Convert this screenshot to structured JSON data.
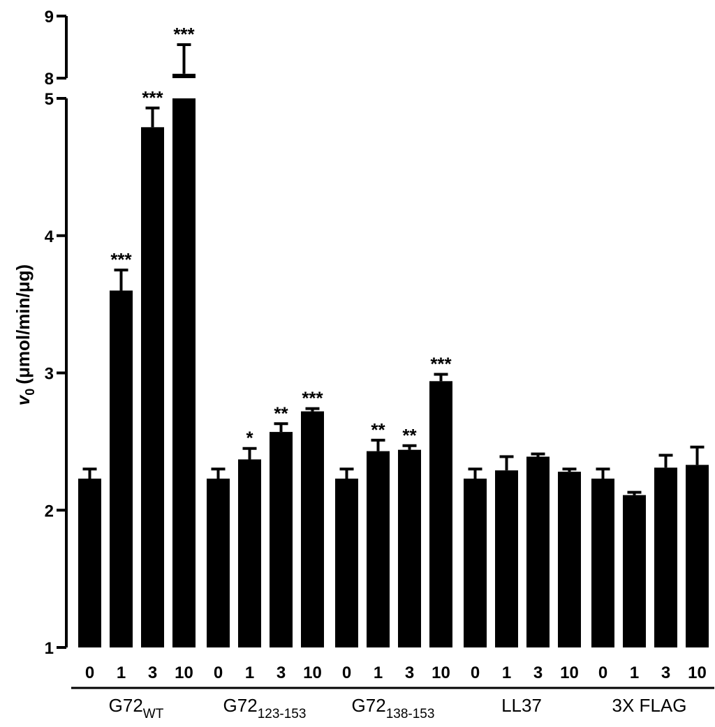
{
  "chart_data": {
    "type": "bar",
    "ylabel_var": "v",
    "ylabel_sub": "0",
    "ylabel_unit": "(μmol/min/μg)",
    "axis_break": {
      "lower": [
        1,
        5
      ],
      "upper": [
        8,
        9
      ]
    },
    "yticks": [
      1,
      2,
      3,
      4,
      5,
      8,
      9
    ],
    "colors": {
      "bar": "#000000"
    },
    "groups": [
      {
        "label": "G72",
        "label_sub": "WT",
        "categories": [
          "0",
          "1",
          "3",
          "10"
        ],
        "values": [
          2.23,
          3.6,
          4.79,
          8.07
        ],
        "errors": [
          0.07,
          0.15,
          0.14,
          0.47
        ],
        "significance": [
          "",
          "***",
          "***",
          "***"
        ]
      },
      {
        "label": "G72",
        "label_sub": "123-153",
        "categories": [
          "0",
          "1",
          "3",
          "10"
        ],
        "values": [
          2.23,
          2.37,
          2.57,
          2.72
        ],
        "errors": [
          0.07,
          0.08,
          0.06,
          0.02
        ],
        "significance": [
          "",
          "*",
          "**",
          "***"
        ]
      },
      {
        "label": "G72",
        "label_sub": "138-153",
        "categories": [
          "0",
          "1",
          "3",
          "10"
        ],
        "values": [
          2.23,
          2.43,
          2.44,
          2.94
        ],
        "errors": [
          0.07,
          0.08,
          0.03,
          0.05
        ],
        "significance": [
          "",
          "**",
          "**",
          "***"
        ]
      },
      {
        "label": "LL37",
        "label_sub": "",
        "categories": [
          "0",
          "1",
          "3",
          "10"
        ],
        "values": [
          2.23,
          2.29,
          2.39,
          2.28
        ],
        "errors": [
          0.07,
          0.1,
          0.02,
          0.02
        ],
        "significance": [
          "",
          "",
          "",
          ""
        ]
      },
      {
        "label": "3X FLAG",
        "label_sub": "",
        "categories": [
          "0",
          "1",
          "3",
          "10"
        ],
        "values": [
          2.23,
          2.11,
          2.31,
          2.33
        ],
        "errors": [
          0.07,
          0.02,
          0.09,
          0.13
        ],
        "significance": [
          "",
          "",
          "",
          ""
        ]
      }
    ]
  }
}
